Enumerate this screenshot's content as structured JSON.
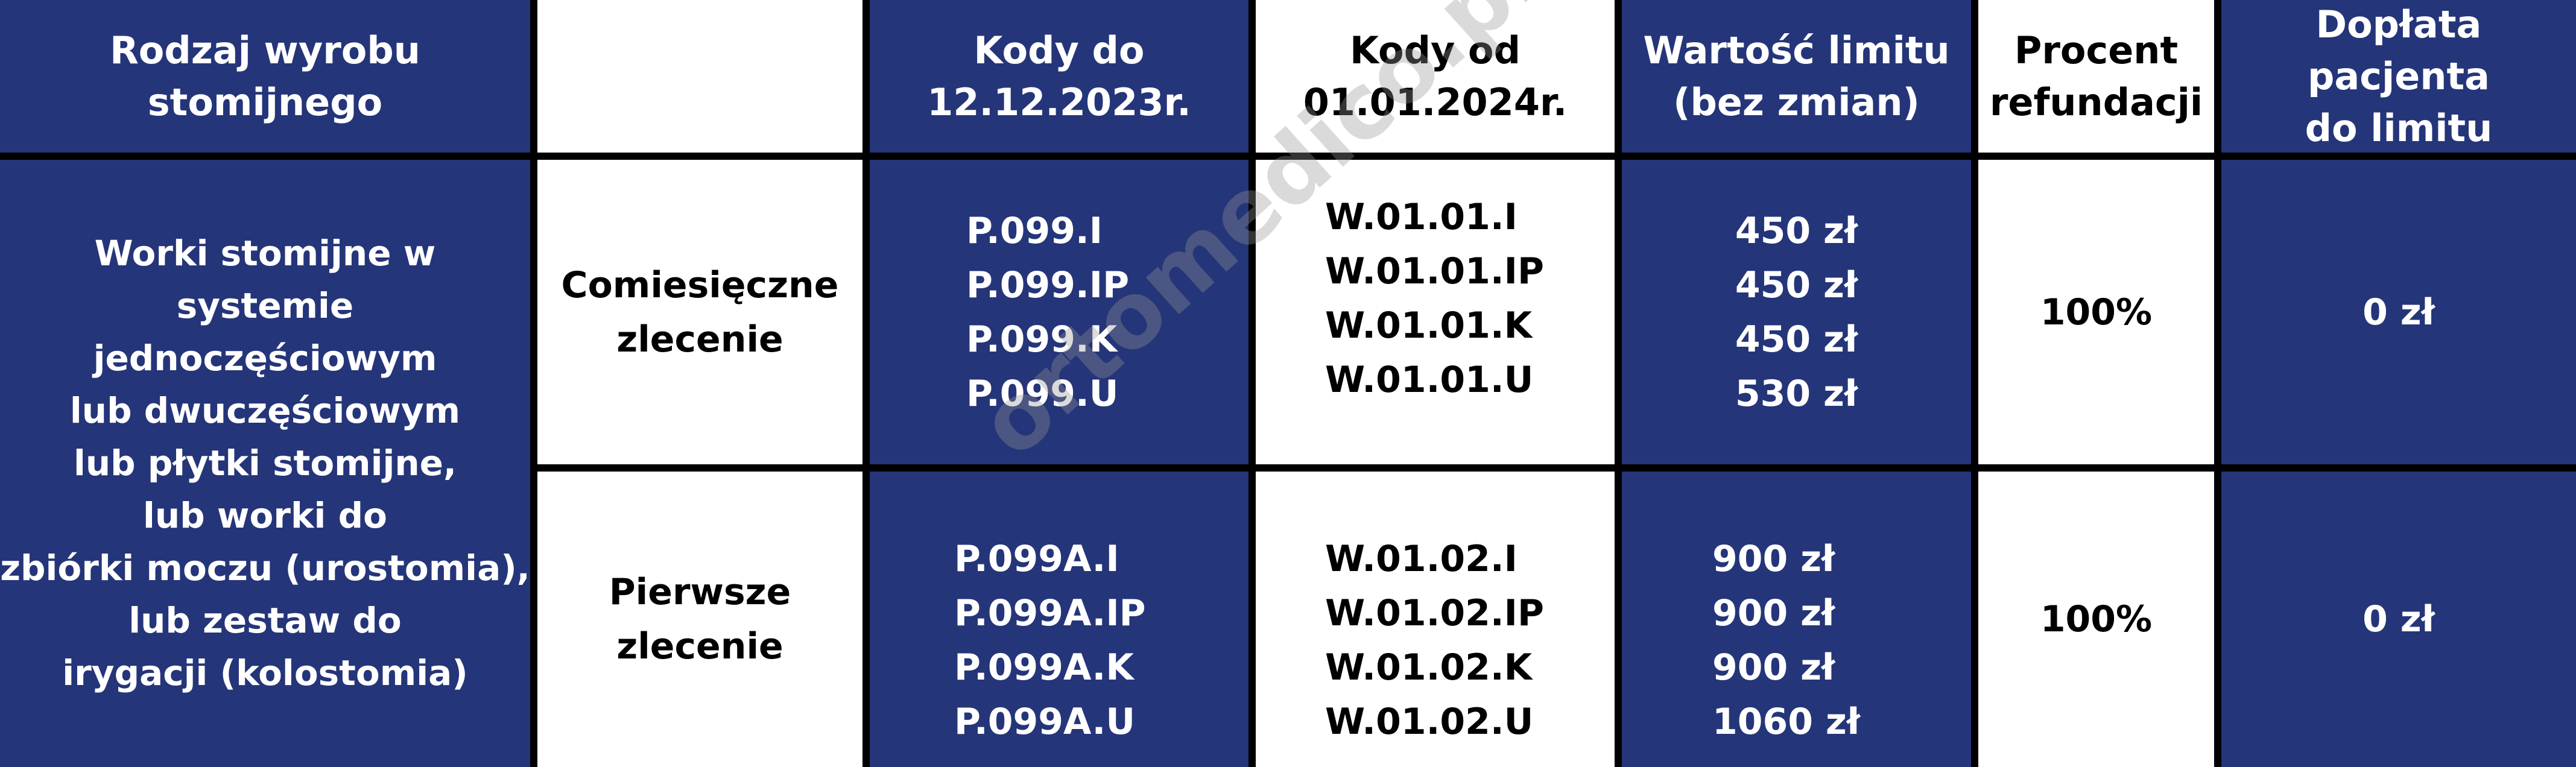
{
  "header": {
    "col1": [
      "Rodzaj wyrobu",
      "stomijnego"
    ],
    "col2": "",
    "col3": [
      "Kody do",
      "12.12.2023r."
    ],
    "col4": [
      "Kody od",
      "01.01.2024r."
    ],
    "col5": [
      "Wartość limitu",
      "(bez zmian)"
    ],
    "col6": [
      "Procent",
      "refundacji"
    ],
    "col7": [
      "Dopłata pacjenta",
      "do limitu"
    ]
  },
  "product": [
    "Worki stomijne w systemie",
    "jednoczęściowym",
    "lub dwuczęściowym",
    "lub płytki stomijne,",
    "lub worki do",
    "zbiórki moczu (urostomia),",
    "lub zestaw do",
    "irygacji (kolostomia)"
  ],
  "rows": [
    {
      "order": [
        "Comiesięczne",
        "zlecenie"
      ],
      "old_codes": [
        "P.099.I",
        "P.099.IP",
        "P.099.K",
        "P.099.U"
      ],
      "new_codes": [
        "W.01.01.I",
        "W.01.01.IP",
        "W.01.01.K",
        "W.01.01.U"
      ],
      "limits": [
        "450 zł",
        "450 zł",
        "450 zł",
        "530 zł"
      ],
      "refund": "100%",
      "copay": "0 zł"
    },
    {
      "order": [
        "Pierwsze",
        "zlecenie"
      ],
      "old_codes": [
        "P.099A.I",
        "P.099A.IP",
        "P.099A.K",
        "P.099A.U"
      ],
      "new_codes": [
        "W.01.02.I",
        "W.01.02.IP",
        "W.01.02.K",
        "W.01.02.U"
      ],
      "limits": [
        "900 zł",
        "900 zł",
        "900 zł",
        "1060 zł"
      ],
      "refund": "100%",
      "copay": "0 zł"
    }
  ],
  "watermark": "ortomedico.pl",
  "colors": {
    "navy": "#253579",
    "white": "#ffffff",
    "grid": "#000000"
  }
}
